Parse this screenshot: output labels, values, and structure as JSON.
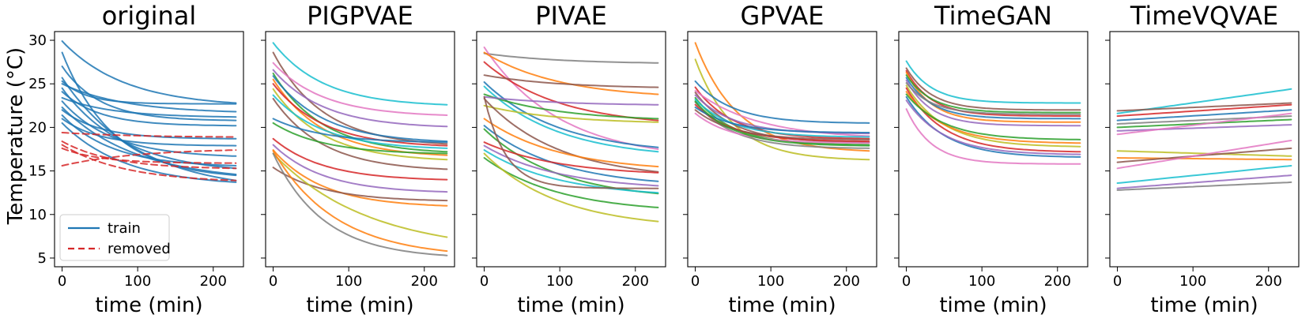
{
  "figure": {
    "ylabel": "Temperature (°C)",
    "xlabel": "time (min)"
  },
  "chart_data": [
    {
      "type": "line",
      "title": "original",
      "xlabel": "time (min)",
      "ylabel": "Temperature (°C)",
      "xlim": [
        -10,
        240
      ],
      "ylim": [
        4,
        31
      ],
      "xticks": [
        0,
        100,
        200
      ],
      "yticks": [
        5,
        10,
        15,
        20,
        25,
        30
      ],
      "legend": {
        "position": "bottom-left",
        "entries": [
          {
            "label": "train",
            "color": "#1f77b4",
            "dash": false
          },
          {
            "label": "removed",
            "color": "#d62728",
            "dash": true
          }
        ]
      },
      "series": [
        {
          "name": "train",
          "color": "#1f77b4",
          "dash": false,
          "start": 29.9,
          "end": 22.8,
          "rate": 0.012
        },
        {
          "name": "train",
          "color": "#1f77b4",
          "dash": false,
          "start": 28.6,
          "end": 14.5,
          "rate": 0.015
        },
        {
          "name": "train",
          "color": "#1f77b4",
          "dash": false,
          "start": 27.0,
          "end": 20.8,
          "rate": 0.02
        },
        {
          "name": "train",
          "color": "#1f77b4",
          "dash": false,
          "start": 25.7,
          "end": 13.9,
          "rate": 0.01
        },
        {
          "name": "train",
          "color": "#1f77b4",
          "dash": false,
          "start": 25.3,
          "end": 22.7,
          "rate": 0.03
        },
        {
          "name": "train",
          "color": "#1f77b4",
          "dash": false,
          "start": 25.0,
          "end": 21.8,
          "rate": 0.012
        },
        {
          "name": "train",
          "color": "#1f77b4",
          "dash": false,
          "start": 24.5,
          "end": 15.3,
          "rate": 0.012
        },
        {
          "name": "train",
          "color": "#1f77b4",
          "dash": false,
          "start": 24.1,
          "end": 20.2,
          "rate": 0.02
        },
        {
          "name": "train",
          "color": "#1f77b4",
          "dash": false,
          "start": 23.4,
          "end": 21.2,
          "rate": 0.015
        },
        {
          "name": "train",
          "color": "#1f77b4",
          "dash": false,
          "start": 23.0,
          "end": 16.7,
          "rate": 0.015
        },
        {
          "name": "train",
          "color": "#1f77b4",
          "dash": false,
          "start": 22.3,
          "end": 14.6,
          "rate": 0.01
        },
        {
          "name": "train",
          "color": "#1f77b4",
          "dash": false,
          "start": 22.0,
          "end": 18.7,
          "rate": 0.02
        },
        {
          "name": "train",
          "color": "#1f77b4",
          "dash": false,
          "start": 21.4,
          "end": 15.6,
          "rate": 0.015
        },
        {
          "name": "train",
          "color": "#1f77b4",
          "dash": false,
          "start": 21.0,
          "end": 17.9,
          "rate": 0.02
        },
        {
          "name": "train",
          "color": "#1f77b4",
          "dash": false,
          "start": 20.5,
          "end": 13.7,
          "rate": 0.012
        },
        {
          "name": "removed",
          "color": "#d62728",
          "dash": true,
          "start": 19.4,
          "end": 18.9,
          "rate": 0.01
        },
        {
          "name": "removed",
          "color": "#d62728",
          "dash": true,
          "start": 18.4,
          "end": 15.3,
          "rate": 0.015
        },
        {
          "name": "removed",
          "color": "#d62728",
          "dash": true,
          "start": 18.0,
          "end": 13.9,
          "rate": 0.012
        },
        {
          "name": "removed",
          "color": "#d62728",
          "dash": true,
          "start": 17.6,
          "end": 15.9,
          "rate": 0.02
        },
        {
          "name": "removed",
          "color": "#d62728",
          "dash": true,
          "start": 15.6,
          "end": 17.4,
          "rate": 0.01
        }
      ]
    },
    {
      "type": "line",
      "title": "PIGPVAE",
      "xlabel": "time (min)",
      "xlim": [
        -10,
        240
      ],
      "ylim": [
        4,
        31
      ],
      "xticks": [
        0,
        100,
        200
      ],
      "yticks": [
        5,
        10,
        15,
        20,
        25,
        30
      ],
      "series": [
        {
          "color": "#17becf",
          "start": 29.7,
          "end": 22.6,
          "rate": 0.015
        },
        {
          "color": "#8c564b",
          "start": 28.6,
          "end": 18.1,
          "rate": 0.015
        },
        {
          "color": "#e377c2",
          "start": 27.4,
          "end": 21.4,
          "rate": 0.015
        },
        {
          "color": "#9467bd",
          "start": 26.6,
          "end": 20.1,
          "rate": 0.015
        },
        {
          "color": "#2ca02c",
          "start": 26.2,
          "end": 17.2,
          "rate": 0.015
        },
        {
          "color": "#1f77b4",
          "start": 25.9,
          "end": 18.4,
          "rate": 0.015
        },
        {
          "color": "#ff7f0e",
          "start": 25.5,
          "end": 16.8,
          "rate": 0.015
        },
        {
          "color": "#d62728",
          "start": 25.0,
          "end": 17.9,
          "rate": 0.015
        },
        {
          "color": "#bcbd22",
          "start": 24.4,
          "end": 16.3,
          "rate": 0.015
        },
        {
          "color": "#17becf",
          "start": 23.7,
          "end": 17.6,
          "rate": 0.015
        },
        {
          "color": "#8c564b",
          "start": 23.3,
          "end": 15.2,
          "rate": 0.015
        },
        {
          "color": "#1f77b4",
          "start": 21.0,
          "end": 18.3,
          "rate": 0.015
        },
        {
          "color": "#2ca02c",
          "start": 20.5,
          "end": 17.0,
          "rate": 0.015
        },
        {
          "color": "#d62728",
          "start": 18.7,
          "end": 14.0,
          "rate": 0.015
        },
        {
          "color": "#9467bd",
          "start": 18.0,
          "end": 12.6,
          "rate": 0.015
        },
        {
          "color": "#ff7f0e",
          "start": 17.4,
          "end": 11.0,
          "rate": 0.015
        },
        {
          "color": "#8c564b",
          "start": 15.4,
          "end": 11.6,
          "rate": 0.015
        },
        {
          "color": "#bcbd22",
          "start": 17.0,
          "end": 7.4,
          "rate": 0.008
        },
        {
          "color": "#ff7f0e",
          "start": 17.3,
          "end": 5.8,
          "rate": 0.012
        },
        {
          "color": "#7f7f7f",
          "start": 17.0,
          "end": 5.3,
          "rate": 0.015
        }
      ]
    },
    {
      "type": "line",
      "title": "PIVAE",
      "xlabel": "time (min)",
      "xlim": [
        -10,
        240
      ],
      "ylim": [
        4,
        31
      ],
      "xticks": [
        0,
        100,
        200
      ],
      "yticks": [
        5,
        10,
        15,
        20,
        25,
        30
      ],
      "series": [
        {
          "color": "#7f7f7f",
          "start": 28.5,
          "end": 27.4,
          "rate": 0.01
        },
        {
          "color": "#e377c2",
          "start": 29.2,
          "end": 17.5,
          "rate": 0.01
        },
        {
          "color": "#ff7f0e",
          "start": 28.6,
          "end": 23.8,
          "rate": 0.01
        },
        {
          "color": "#d62728",
          "start": 27.5,
          "end": 20.8,
          "rate": 0.01
        },
        {
          "color": "#8c564b",
          "start": 26.0,
          "end": 24.6,
          "rate": 0.01
        },
        {
          "color": "#1f77b4",
          "start": 25.2,
          "end": 17.7,
          "rate": 0.01
        },
        {
          "color": "#17becf",
          "start": 24.7,
          "end": 17.2,
          "rate": 0.01
        },
        {
          "color": "#2ca02c",
          "start": 23.8,
          "end": 21.0,
          "rate": 0.01
        },
        {
          "color": "#bcbd22",
          "start": 22.5,
          "end": 20.6,
          "rate": 0.01
        },
        {
          "color": "#9467bd",
          "start": 23.5,
          "end": 22.6,
          "rate": 0.01
        },
        {
          "color": "#8c564b",
          "start": 23.3,
          "end": 14.9,
          "rate": 0.01
        },
        {
          "color": "#ff7f0e",
          "start": 21.0,
          "end": 15.5,
          "rate": 0.01
        },
        {
          "color": "#1f77b4",
          "start": 20.2,
          "end": 13.8,
          "rate": 0.01
        },
        {
          "color": "#2ca02c",
          "start": 19.8,
          "end": 12.4,
          "rate": 0.01
        },
        {
          "color": "#d62728",
          "start": 18.3,
          "end": 14.8,
          "rate": 0.01
        },
        {
          "color": "#9467bd",
          "start": 17.9,
          "end": 13.3,
          "rate": 0.01
        },
        {
          "color": "#17becf",
          "start": 17.4,
          "end": 12.5,
          "rate": 0.01
        },
        {
          "color": "#2ca02c",
          "start": 16.5,
          "end": 10.8,
          "rate": 0.01
        },
        {
          "color": "#bcbd22",
          "start": 17.0,
          "end": 9.2,
          "rate": 0.01
        },
        {
          "color": "#8c564b",
          "start": 23.5,
          "end": 13.0,
          "rate": 0.035
        }
      ]
    },
    {
      "type": "line",
      "title": "GPVAE",
      "xlabel": "time (min)",
      "xlim": [
        -10,
        240
      ],
      "ylim": [
        4,
        31
      ],
      "xticks": [
        0,
        100,
        200
      ],
      "yticks": [
        5,
        10,
        15,
        20,
        25,
        30
      ],
      "series": [
        {
          "color": "#ff7f0e",
          "start": 29.7,
          "end": 17.3,
          "rate": 0.018
        },
        {
          "color": "#bcbd22",
          "start": 27.8,
          "end": 16.3,
          "rate": 0.02
        },
        {
          "color": "#1f77b4",
          "start": 25.3,
          "end": 20.5,
          "rate": 0.02
        },
        {
          "color": "#d62728",
          "start": 24.6,
          "end": 18.7,
          "rate": 0.02
        },
        {
          "color": "#e377c2",
          "start": 24.2,
          "end": 19.0,
          "rate": 0.012
        },
        {
          "color": "#8c564b",
          "start": 24.0,
          "end": 18.3,
          "rate": 0.02
        },
        {
          "color": "#9467bd",
          "start": 23.7,
          "end": 19.3,
          "rate": 0.02
        },
        {
          "color": "#2ca02c",
          "start": 23.4,
          "end": 18.0,
          "rate": 0.02
        },
        {
          "color": "#17becf",
          "start": 23.2,
          "end": 18.9,
          "rate": 0.02
        },
        {
          "color": "#7f7f7f",
          "start": 22.9,
          "end": 17.6,
          "rate": 0.02
        },
        {
          "color": "#d62728",
          "start": 22.6,
          "end": 18.4,
          "rate": 0.02
        },
        {
          "color": "#1f77b4",
          "start": 22.3,
          "end": 19.4,
          "rate": 0.02
        },
        {
          "color": "#8c564b",
          "start": 22.0,
          "end": 18.6,
          "rate": 0.02
        },
        {
          "color": "#e377c2",
          "start": 21.6,
          "end": 18.2,
          "rate": 0.02
        },
        {
          "color": "#2ca02c",
          "start": 23.0,
          "end": 17.9,
          "rate": 0.02
        }
      ]
    },
    {
      "type": "line",
      "title": "TimeGAN",
      "xlabel": "time (min)",
      "xlim": [
        -10,
        240
      ],
      "ylim": [
        4,
        31
      ],
      "xticks": [
        0,
        100,
        200
      ],
      "yticks": [
        5,
        10,
        15,
        20,
        25,
        30
      ],
      "series": [
        {
          "color": "#17becf",
          "start": 27.6,
          "end": 22.8,
          "rate": 0.03
        },
        {
          "color": "#8c564b",
          "start": 26.8,
          "end": 22.0,
          "rate": 0.03
        },
        {
          "color": "#d62728",
          "start": 26.5,
          "end": 21.3,
          "rate": 0.03
        },
        {
          "color": "#ff7f0e",
          "start": 26.3,
          "end": 20.6,
          "rate": 0.03
        },
        {
          "color": "#2ca02c",
          "start": 26.0,
          "end": 21.7,
          "rate": 0.03
        },
        {
          "color": "#1f77b4",
          "start": 25.7,
          "end": 21.0,
          "rate": 0.03
        },
        {
          "color": "#9467bd",
          "start": 25.4,
          "end": 20.2,
          "rate": 0.03
        },
        {
          "color": "#7f7f7f",
          "start": 25.1,
          "end": 21.5,
          "rate": 0.03
        },
        {
          "color": "#bcbd22",
          "start": 24.8,
          "end": 17.8,
          "rate": 0.02
        },
        {
          "color": "#d62728",
          "start": 24.5,
          "end": 17.2,
          "rate": 0.02
        },
        {
          "color": "#ff7f0e",
          "start": 24.1,
          "end": 18.2,
          "rate": 0.02
        },
        {
          "color": "#2ca02c",
          "start": 23.8,
          "end": 18.6,
          "rate": 0.02
        },
        {
          "color": "#1f77b4",
          "start": 23.5,
          "end": 16.6,
          "rate": 0.02
        },
        {
          "color": "#9467bd",
          "start": 23.1,
          "end": 16.9,
          "rate": 0.02
        },
        {
          "color": "#e377c2",
          "start": 22.1,
          "end": 15.8,
          "rate": 0.03
        }
      ]
    },
    {
      "type": "line",
      "title": "TimeVQVAE",
      "xlabel": "time (min)",
      "xlim": [
        -10,
        240
      ],
      "ylim": [
        4,
        31
      ],
      "xticks": [
        0,
        100,
        200
      ],
      "yticks": [
        5,
        10,
        15,
        20,
        25,
        30
      ],
      "series": [
        {
          "color": "#17becf",
          "start": 21.6,
          "end": 24.4,
          "rate": 0.0
        },
        {
          "color": "#d62728",
          "start": 21.3,
          "end": 22.6,
          "rate": 0.0
        },
        {
          "color": "#8c564b",
          "start": 21.9,
          "end": 22.8,
          "rate": 0.0
        },
        {
          "color": "#1f77b4",
          "start": 20.8,
          "end": 22.0,
          "rate": 0.0
        },
        {
          "color": "#7f7f7f",
          "start": 20.4,
          "end": 21.3,
          "rate": 0.0
        },
        {
          "color": "#2ca02c",
          "start": 20.0,
          "end": 20.9,
          "rate": 0.0
        },
        {
          "color": "#9467bd",
          "start": 19.6,
          "end": 20.3,
          "rate": 0.0
        },
        {
          "color": "#e377c2",
          "start": 19.2,
          "end": 21.6,
          "rate": 0.0
        },
        {
          "color": "#bcbd22",
          "start": 17.3,
          "end": 16.7,
          "rate": 0.0
        },
        {
          "color": "#ff7f0e",
          "start": 16.5,
          "end": 16.3,
          "rate": 0.0
        },
        {
          "color": "#8c564b",
          "start": 16.0,
          "end": 17.6,
          "rate": 0.0
        },
        {
          "color": "#e377c2",
          "start": 15.3,
          "end": 18.5,
          "rate": 0.0
        },
        {
          "color": "#17becf",
          "start": 13.6,
          "end": 15.6,
          "rate": 0.0
        },
        {
          "color": "#9467bd",
          "start": 13.0,
          "end": 14.5,
          "rate": 0.0
        },
        {
          "color": "#7f7f7f",
          "start": 12.8,
          "end": 13.7,
          "rate": 0.0
        }
      ]
    }
  ]
}
